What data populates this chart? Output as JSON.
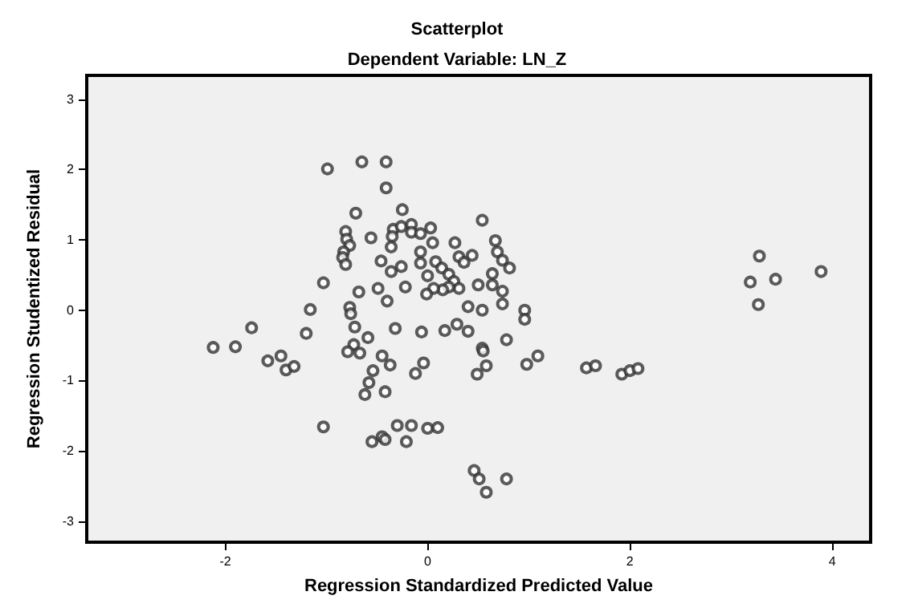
{
  "chart_data": {
    "type": "scatter",
    "title": "Scatterplot",
    "subtitle": "Dependent Variable: LN_Z",
    "xlabel": "Regression Standardized Predicted Value",
    "ylabel": "Regression Studentized Residual",
    "xlim": [
      -3.37,
      4.38
    ],
    "ylim": [
      -3.3,
      3.34
    ],
    "xticks": [
      -2,
      0,
      2,
      4
    ],
    "yticks": [
      -3,
      -2,
      -1,
      0,
      1,
      2,
      3
    ],
    "marker": "circle",
    "series": [
      {
        "color": "#333333",
        "x": [
          -0.99,
          -0.65,
          -0.41,
          -0.41,
          -0.25,
          -0.71,
          -0.81,
          -0.8,
          -0.77,
          -0.83,
          -0.84,
          -0.81,
          -0.56,
          -0.34,
          -0.26,
          -0.35,
          -0.36,
          -0.46,
          -0.36,
          -0.26,
          -1.03,
          -0.68,
          -0.49,
          -0.22,
          -0.4,
          -1.16,
          -0.77,
          -0.76,
          -1.74,
          -1.2,
          -0.72,
          -0.59,
          -0.32,
          -1.9,
          -0.73,
          -2.12,
          -1.58,
          -1.45,
          -1.4,
          -1.32,
          -1.03,
          -0.79,
          -0.67,
          -0.45,
          -0.37,
          -0.54,
          -0.58,
          -0.62,
          -0.42,
          -0.12,
          -0.3,
          -0.16,
          -0.45,
          -0.42,
          -0.55,
          -0.21,
          0.54,
          -0.16,
          -0.16,
          -0.07,
          0.03,
          0.05,
          0.27,
          0.67,
          -0.07,
          0.31,
          0.44,
          0.36,
          0.69,
          0.74,
          0.81,
          -0.07,
          0.08,
          0.14,
          0,
          0.21,
          0.26,
          0.31,
          0.21,
          0.15,
          0.06,
          -0.01,
          0.5,
          0.64,
          0.64,
          0.74,
          0.74,
          0.4,
          0.54,
          0.96,
          0.96,
          -0.06,
          0.17,
          0.29,
          0.4,
          0.78,
          0.54,
          3.27,
          0.55,
          1.09,
          0.98,
          -0.04,
          0.58,
          0.49,
          1.57,
          1.66,
          1.92,
          2,
          2.08,
          0,
          0.1,
          0.46,
          0.51,
          0.78,
          0.58,
          3.19,
          3.28,
          3.44,
          3.89
        ],
        "values": [
          2.01,
          2.11,
          2.11,
          1.74,
          1.43,
          1.38,
          1.12,
          1.01,
          0.92,
          0.83,
          0.75,
          0.65,
          1.03,
          1.15,
          1.19,
          1.05,
          0.9,
          0.7,
          0.55,
          0.62,
          0.39,
          0.26,
          0.31,
          0.33,
          0.13,
          0.01,
          0.04,
          -0.05,
          -0.25,
          -0.33,
          -0.24,
          -0.39,
          -0.26,
          -0.52,
          -0.49,
          -0.53,
          -0.72,
          -0.65,
          -0.85,
          -0.8,
          -1.66,
          -0.59,
          -0.61,
          -0.65,
          -0.78,
          -0.86,
          -1.03,
          -1.2,
          -1.16,
          -0.9,
          -1.64,
          -1.64,
          -1.8,
          -1.84,
          -1.87,
          -1.87,
          1.28,
          1.22,
          1.11,
          1.09,
          1.17,
          0.96,
          0.96,
          0.99,
          0.83,
          0.76,
          0.78,
          0.68,
          0.83,
          0.71,
          0.6,
          0.67,
          0.69,
          0.6,
          0.49,
          0.51,
          0.41,
          0.31,
          0.33,
          0.29,
          0.31,
          0.23,
          0.36,
          0.36,
          0.52,
          0.27,
          0.09,
          0.05,
          0,
          0,
          -0.13,
          -0.31,
          -0.29,
          -0.2,
          -0.3,
          -0.42,
          -0.54,
          0.08,
          -0.58,
          -0.65,
          -0.77,
          -0.75,
          -0.79,
          -0.91,
          -0.82,
          -0.79,
          -0.91,
          -0.86,
          -0.83,
          -1.68,
          -1.67,
          -2.28,
          -2.4,
          -2.4,
          -2.59,
          0.4,
          0.77,
          0.44,
          0.55
        ]
      }
    ]
  }
}
